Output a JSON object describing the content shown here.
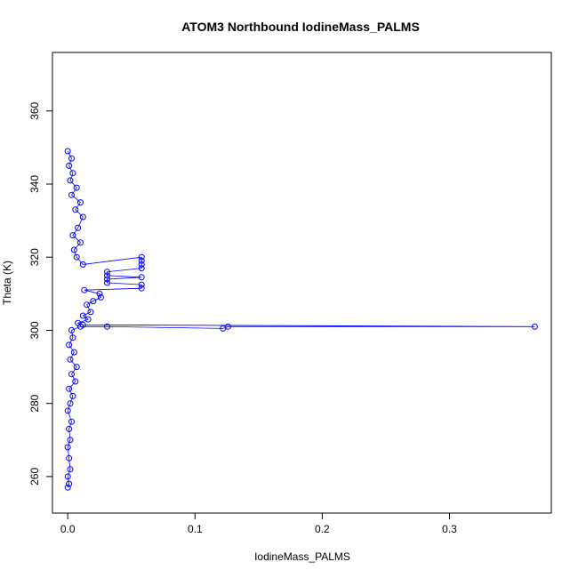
{
  "chart_data": {
    "type": "scatter",
    "title": "ATOM3 Northbound IodineMass_PALMS",
    "xlabel": "IodineMass_PALMS",
    "ylabel": "Theta (K)",
    "xlim": [
      -0.012,
      0.38
    ],
    "ylim": [
      250,
      376
    ],
    "xticks": [
      0.0,
      0.1,
      0.2,
      0.3
    ],
    "xtick_labels": [
      "0.0",
      "0.1",
      "0.2",
      "0.3"
    ],
    "yticks": [
      260,
      280,
      300,
      320,
      340,
      360
    ],
    "ytick_labels": [
      "260",
      "280",
      "300",
      "320",
      "340",
      "360"
    ],
    "grid": false,
    "legend": "none",
    "series_color": "#0000ff",
    "series": [
      {
        "points": [
          [
            0.0,
            257
          ],
          [
            0.001,
            258
          ],
          [
            0.0,
            260
          ],
          [
            0.002,
            262
          ],
          [
            0.001,
            265
          ],
          [
            0.0,
            268
          ],
          [
            0.002,
            270
          ],
          [
            0.001,
            273
          ],
          [
            0.003,
            275
          ],
          [
            0.0,
            278
          ],
          [
            0.002,
            280
          ],
          [
            0.004,
            282
          ],
          [
            0.001,
            284
          ],
          [
            0.006,
            286
          ],
          [
            0.003,
            288
          ],
          [
            0.007,
            290
          ],
          [
            0.002,
            292
          ],
          [
            0.005,
            294
          ],
          [
            0.001,
            296
          ],
          [
            0.004,
            298
          ],
          [
            0.003,
            300
          ],
          [
            0.01,
            301
          ],
          [
            0.031,
            301
          ],
          [
            0.122,
            300.5
          ],
          [
            0.126,
            301
          ],
          [
            0.367,
            301
          ],
          [
            0.012,
            301.5
          ],
          [
            0.008,
            302
          ],
          [
            0.016,
            303
          ],
          [
            0.012,
            304
          ],
          [
            0.018,
            305
          ],
          [
            0.015,
            307
          ],
          [
            0.02,
            308
          ],
          [
            0.026,
            309
          ],
          [
            0.025,
            310
          ],
          [
            0.013,
            311
          ],
          [
            0.058,
            311.5
          ],
          [
            0.058,
            312.5
          ],
          [
            0.031,
            313
          ],
          [
            0.031,
            314
          ],
          [
            0.058,
            314.5
          ],
          [
            0.031,
            315
          ],
          [
            0.031,
            316
          ],
          [
            0.058,
            317
          ],
          [
            0.058,
            318
          ],
          [
            0.058,
            319
          ],
          [
            0.058,
            320
          ],
          [
            0.012,
            318
          ],
          [
            0.007,
            320
          ],
          [
            0.005,
            322
          ],
          [
            0.01,
            324
          ],
          [
            0.004,
            326
          ],
          [
            0.008,
            328
          ],
          [
            0.012,
            331
          ],
          [
            0.006,
            333
          ],
          [
            0.01,
            335
          ],
          [
            0.003,
            337
          ],
          [
            0.007,
            339
          ],
          [
            0.002,
            341
          ],
          [
            0.004,
            343
          ],
          [
            0.001,
            345
          ],
          [
            0.003,
            347
          ],
          [
            0.0,
            349
          ]
        ]
      }
    ]
  }
}
